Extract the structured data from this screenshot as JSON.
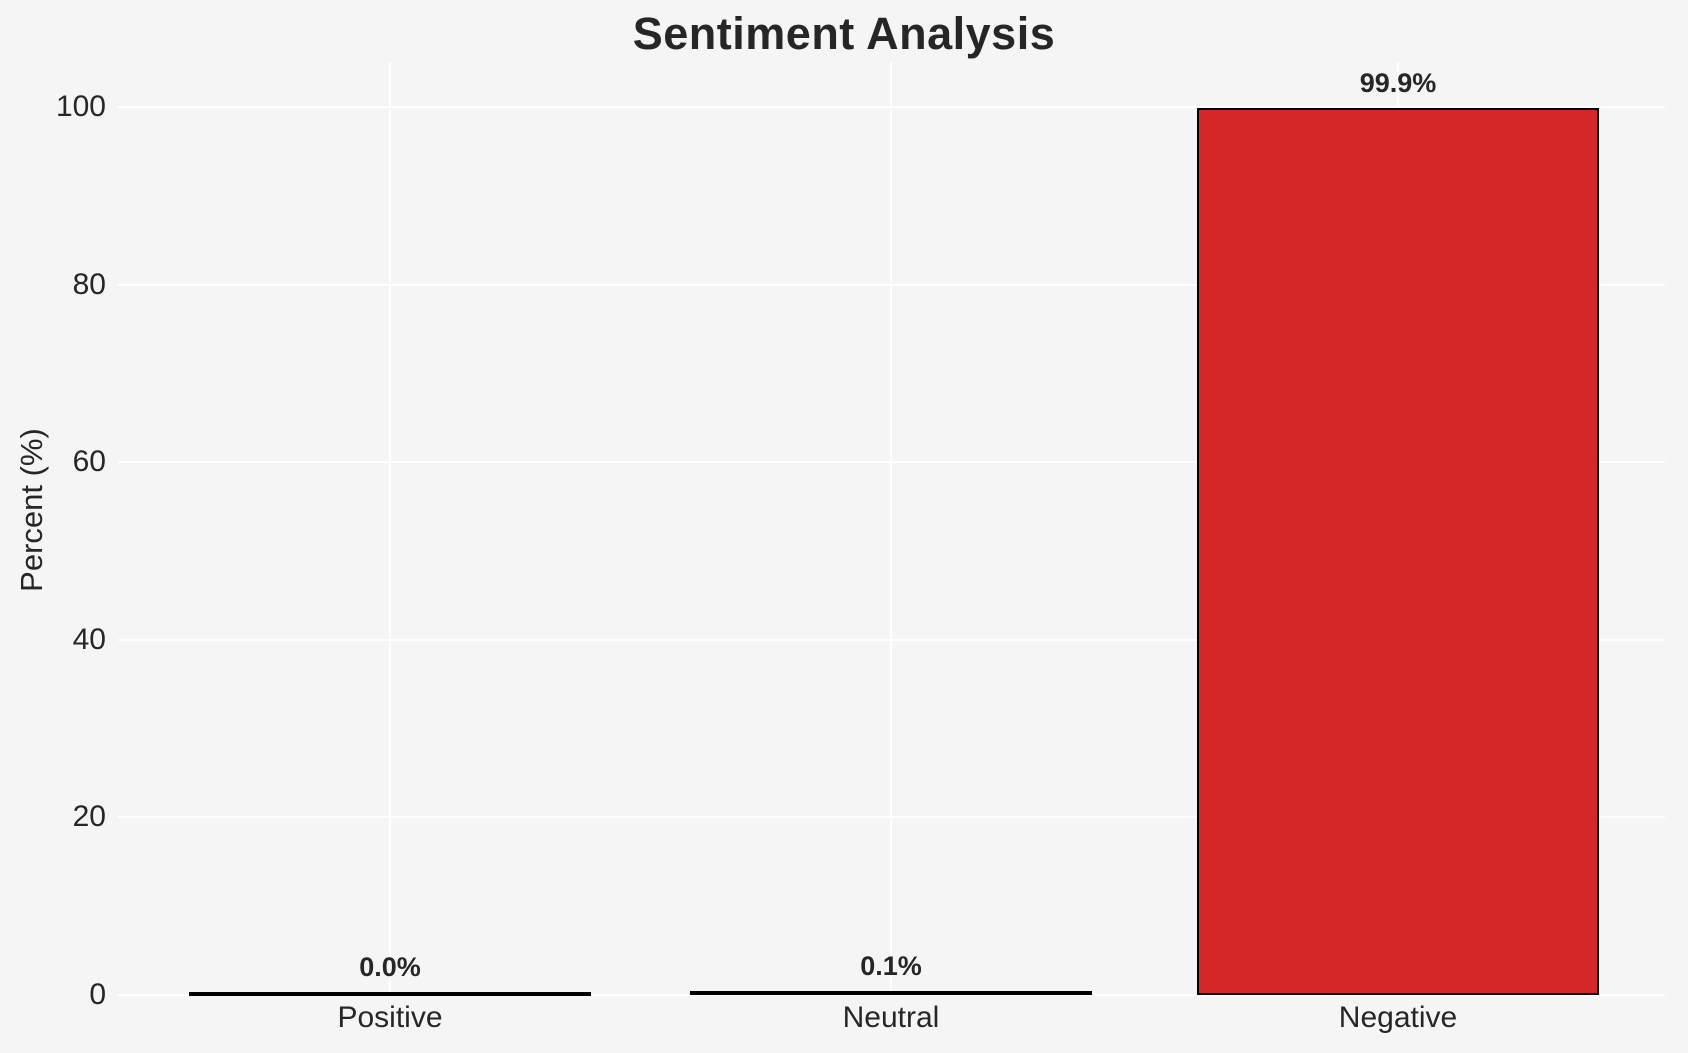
{
  "chart_data": {
    "type": "bar",
    "title": "Sentiment Analysis",
    "ylabel": "Percent (%)",
    "xlabel": "",
    "categories": [
      "Positive",
      "Neutral",
      "Negative"
    ],
    "values": [
      0.0,
      0.1,
      99.9
    ],
    "value_labels": [
      "0.0%",
      "0.1%",
      "99.9%"
    ],
    "yticks": [
      "0",
      "20",
      "40",
      "60",
      "80",
      "100"
    ],
    "ytick_values": [
      0,
      20,
      40,
      60,
      80,
      100
    ],
    "ylim": [
      0,
      105
    ],
    "grid": "on",
    "legend": "none",
    "bar_color": "#d62728",
    "bar_edge_color": "#000000",
    "background_color": "#f5f5f6",
    "gridline_color": "#ffffff",
    "text_color": "#262626"
  }
}
